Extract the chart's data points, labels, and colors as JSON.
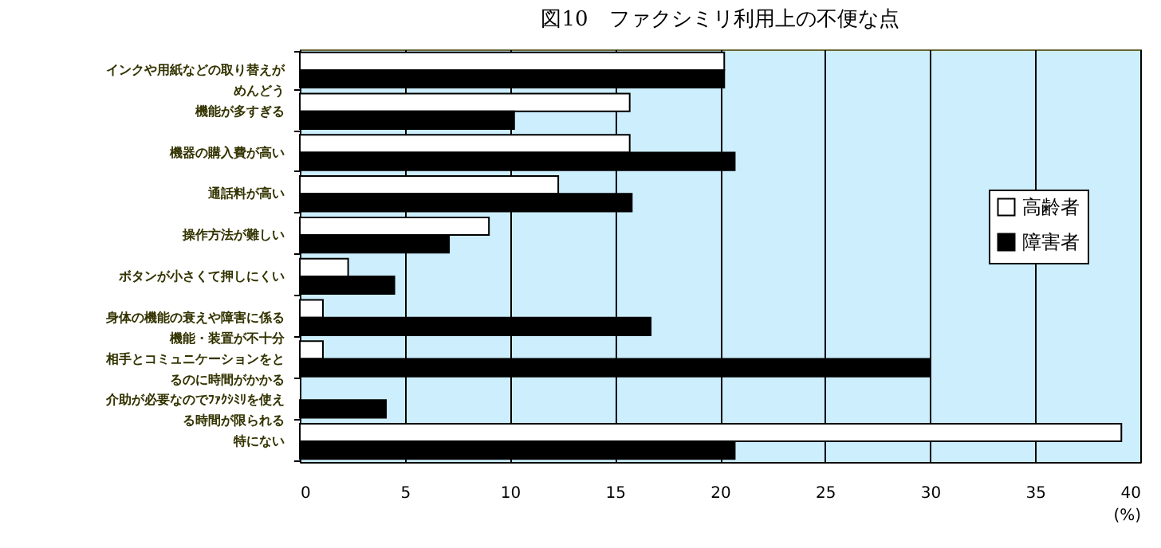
{
  "chart_data": {
    "type": "bar",
    "orientation": "horizontal",
    "title": "図10　ファクシミリ利用上の不便な点",
    "xlabel": "(%)",
    "categories": [
      "インクや用紙などの取り替えがめんどう",
      "機能が多すぎる",
      "機器の購入費が高い",
      "通話料が高い",
      "操作方法が難しい",
      "ボタンが小さくて押しにくい",
      "身体の機能の衰えや障害に係る機能・装置が不十分",
      "相手とコミュニケーションをとるのに時間がかかる",
      "介助が必要なのでﾌｧｸｼﾐﾘを使える時間が限られる",
      "特にない"
    ],
    "series": [
      {
        "name": "高齢者",
        "color": "#ffffff",
        "values": [
          20.2,
          15.7,
          15.7,
          12.3,
          9.0,
          2.3,
          1.1,
          1.1,
          null,
          39.1
        ]
      },
      {
        "name": "障害者",
        "color": "#000000",
        "values": [
          20.2,
          10.2,
          20.7,
          15.8,
          7.1,
          4.5,
          16.7,
          30.0,
          4.1,
          20.7
        ]
      }
    ],
    "xlim": [
      0,
      40
    ],
    "xticks": [
      0,
      5,
      10,
      15,
      20,
      25,
      30,
      35,
      40
    ],
    "grid": "x",
    "legend": "right"
  }
}
